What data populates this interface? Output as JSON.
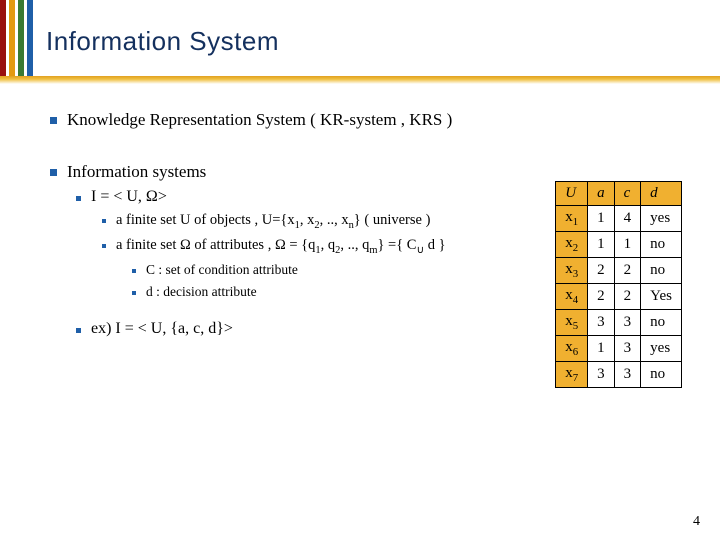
{
  "title": {
    "text": "Information System",
    "color": "#14305e",
    "fontsize": 26
  },
  "stripes": [
    {
      "color": "#9a0f0f",
      "w": 6
    },
    {
      "color": "#ffffff",
      "w": 3
    },
    {
      "color": "#e39a12",
      "w": 6
    },
    {
      "color": "#ffffff",
      "w": 3
    },
    {
      "color": "#3a7a33",
      "w": 6
    },
    {
      "color": "#ffffff",
      "w": 3
    },
    {
      "color": "#1f5fa8",
      "w": 6
    }
  ],
  "bullets": {
    "krs": "Knowledge Representation System ( KR-system , KRS )",
    "is": "Information systems",
    "iuw": "I = < U, Ω>",
    "u_def_pre": "a finite set U of objects ,  U={x",
    "u_def_post": "}  ( universe )",
    "w_def_pre": "a finite set Ω of attributes , Ω = {q",
    "w_def_post": "} ={ C",
    "w_def_end": " d }",
    "c_attr": "C : set of condition attribute",
    "d_attr": "d : decision attribute",
    "ex": "ex) I = < U, {a, c, d}>"
  },
  "table": {
    "header_bg": "#f0b030",
    "columns": [
      "U",
      "a",
      "c",
      "d"
    ],
    "rows": [
      [
        "x1",
        "1",
        "4",
        "yes"
      ],
      [
        "x2",
        "1",
        "1",
        "no"
      ],
      [
        "x3",
        "2",
        "2",
        "no"
      ],
      [
        "x4",
        "2",
        "2",
        "Yes"
      ],
      [
        "x5",
        "3",
        "3",
        "no"
      ],
      [
        "x6",
        "1",
        "3",
        "yes"
      ],
      [
        "x7",
        "3",
        "3",
        "no"
      ]
    ]
  },
  "pagenum": "4"
}
